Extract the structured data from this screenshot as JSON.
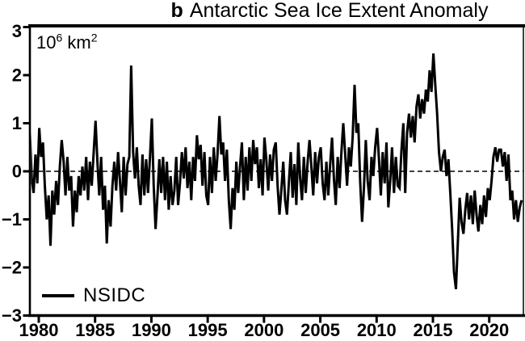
{
  "title": {
    "prefix": "b",
    "text": "Antarctic Sea Ice Extent Anomaly"
  },
  "axes": {
    "unit": {
      "base1": "10",
      "sup1": "6",
      "base2": " km",
      "sup2": "2"
    }
  },
  "legend": {
    "label": "NSIDC"
  },
  "colors": {
    "line": "#000000",
    "frame": "#000000",
    "background": "#ffffff",
    "zero_line": "#000000"
  },
  "chart_data": {
    "type": "line",
    "title": "b Antarctic Sea Ice Extent Anomaly",
    "ylabel": "10^6 km^2",
    "xlabel": "",
    "legend_entries": [
      "NSIDC"
    ],
    "legend_position": "lower-left",
    "grid": false,
    "zero_line_dashed": true,
    "xlim": [
      1979.0,
      2023.0
    ],
    "ylim": [
      -3,
      3
    ],
    "x_ticks": [
      1980,
      1985,
      1990,
      1995,
      2000,
      2005,
      2010,
      2015,
      2020
    ],
    "y_ticks": [
      3,
      2,
      1,
      0,
      -1,
      -2,
      -3
    ],
    "x_start": 1979.04,
    "x_step_years": 0.16667,
    "series": [
      {
        "name": "NSIDC",
        "color": "#000000",
        "values": [
          0.45,
          0.85,
          -0.15,
          -0.45,
          0.35,
          -0.25,
          0.9,
          0.3,
          0.6,
          -0.3,
          -1.0,
          -0.5,
          -1.55,
          -0.4,
          -0.9,
          -0.2,
          -0.7,
          0.1,
          0.65,
          0.2,
          -0.5,
          0.3,
          -0.4,
          -0.1,
          -1.15,
          -0.4,
          -0.85,
          -0.1,
          -0.5,
          0.1,
          -0.4,
          0.3,
          -0.6,
          0.2,
          -0.3,
          0.4,
          1.05,
          0.2,
          -0.5,
          0.3,
          -0.8,
          -0.3,
          -1.5,
          -0.6,
          -1.15,
          -0.3,
          0.2,
          -0.4,
          0.4,
          -0.2,
          -0.85,
          0.3,
          -0.5,
          0.15,
          0.3,
          2.2,
          0.4,
          -0.15,
          0.5,
          -0.3,
          -0.7,
          0.35,
          -0.5,
          0.25,
          -0.45,
          0.3,
          1.1,
          -0.3,
          -1.2,
          -0.5,
          0.25,
          -0.45,
          0.3,
          -0.6,
          0.2,
          -0.8,
          -0.1,
          -0.7,
          -0.4,
          0.3,
          -0.7,
          -0.25,
          0.4,
          -0.15,
          0.5,
          -0.35,
          0.2,
          -0.6,
          0.3,
          -0.2,
          0.75,
          0.25,
          0.55,
          -0.3,
          0.4,
          -0.5,
          -0.7,
          0.3,
          -0.45,
          0.5,
          -0.2,
          0.35,
          1.15,
          0.35,
          0.6,
          -0.2,
          0.45,
          -0.6,
          -1.2,
          -0.35,
          -0.8,
          0.2,
          -0.45,
          0.1,
          0.6,
          -0.6,
          0.3,
          -0.4,
          0.5,
          -0.2,
          0.65,
          0.15,
          0.5,
          -0.35,
          0.25,
          -0.5,
          0.7,
          0.25,
          -0.4,
          0.35,
          -0.2,
          0.45,
          0.6,
          -0.3,
          -0.9,
          -0.4,
          0.2,
          -0.6,
          -0.9,
          -0.25,
          0.4,
          -0.55,
          0.15,
          -0.7,
          0.6,
          -0.15,
          -0.6,
          0.3,
          -0.45,
          0.2,
          0.65,
          0.1,
          -0.5,
          0.4,
          -0.25,
          0.3,
          0.5,
          -0.25,
          -0.6,
          0.2,
          -0.5,
          0.15,
          0.7,
          -0.15,
          -0.7,
          0.3,
          -0.35,
          0.4,
          1.0,
          0.35,
          -0.3,
          0.5,
          0.1,
          0.7,
          1.8,
          0.8,
          1.0,
          -0.2,
          -1.05,
          -0.35,
          0.65,
          -0.2,
          -0.6,
          0.3,
          -0.1,
          0.5,
          0.9,
          0.25,
          -0.5,
          0.4,
          -0.25,
          0.6,
          -0.75,
          -0.2,
          0.5,
          -0.45,
          0.3,
          -0.3,
          -0.35,
          0.45,
          1.0,
          -0.45,
          0.8,
          1.2,
          0.7,
          1.15,
          0.6,
          1.35,
          1.6,
          1.1,
          1.5,
          1.2,
          1.7,
          1.45,
          2.1,
          1.65,
          2.45,
          1.8,
          1.2,
          0.4,
          0.0,
          0.3,
          0.45,
          -0.1,
          0.25,
          -0.45,
          -1.2,
          -2.1,
          -2.45,
          -1.5,
          -0.55,
          -1.05,
          -1.3,
          -0.8,
          -0.45,
          -1.0,
          -0.5,
          -1.1,
          -0.4,
          -0.9,
          -1.25,
          -0.7,
          -1.1,
          -0.5,
          -0.95,
          -0.35,
          -0.6,
          -0.2,
          0.3,
          0.5,
          0.2,
          0.45,
          0.45,
          0.1,
          0.4,
          -0.2,
          0.35,
          -0.6,
          -0.4,
          -1.0,
          -0.6,
          -1.05,
          -0.75,
          -0.6
        ]
      }
    ]
  }
}
